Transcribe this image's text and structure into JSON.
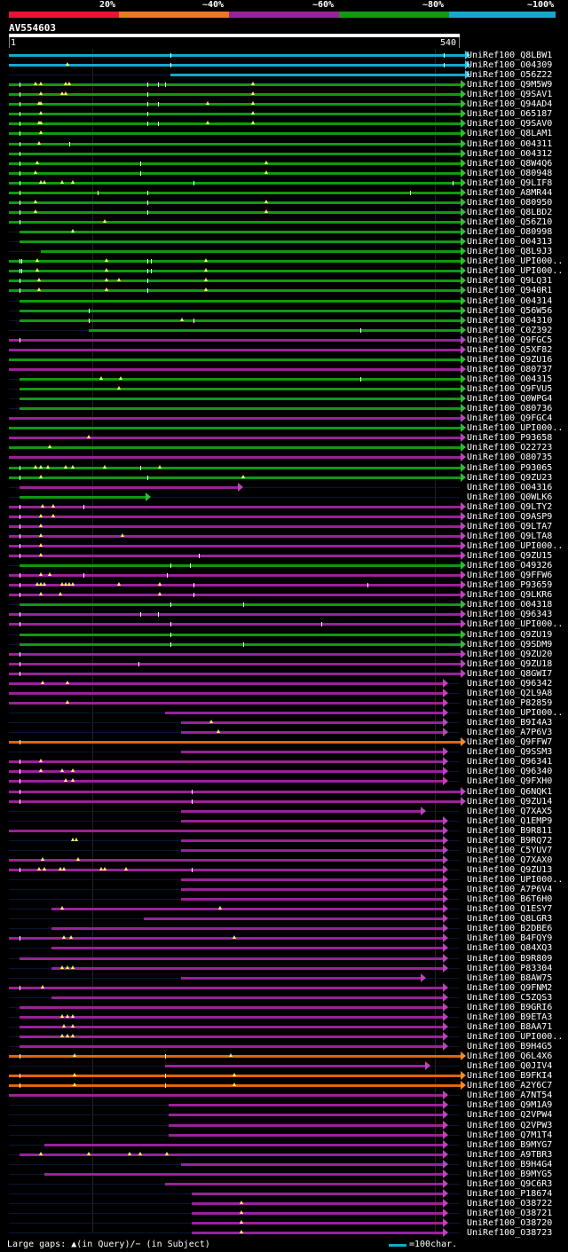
{
  "legend": {
    "items": [
      {
        "label": "20%",
        "color": "#ee1133"
      },
      {
        "label": "~40%",
        "color": "#ee7722"
      },
      {
        "label": "~60%",
        "color": "#992299"
      },
      {
        "label": "~80%",
        "color": "#119911"
      },
      {
        "label": "~100%",
        "color": "#11aacc"
      }
    ]
  },
  "query": {
    "name": "AV554603",
    "start": "1",
    "end": "540"
  },
  "footer": {
    "gaps_text": "Large gaps: ▲(in Query)/− (in Subject)",
    "scale_text": "=100char.",
    "scale_color": "#11aacc"
  },
  "hits": [
    {
      "name": "UniRef100_Q8LBW1",
      "c": "cyan",
      "s": 0,
      "e": 520,
      "b": [
        182,
        490
      ],
      "g": []
    },
    {
      "name": "UniRef100_O04309",
      "c": "cyan",
      "s": 0,
      "e": 520,
      "b": [
        182,
        490
      ],
      "g": [
        66
      ]
    },
    {
      "name": "UniRef100_O56Z22",
      "c": "cyan",
      "s": 182,
      "e": 520,
      "b": [],
      "g": []
    },
    {
      "name": "UniRef100_Q9M5W9",
      "c": "green",
      "s": 0,
      "e": 515,
      "b": [
        12,
        156,
        168,
        176
      ],
      "g": [
        30,
        36,
        64,
        68,
        275
      ]
    },
    {
      "name": "UniRef100_Q9SAV1",
      "c": "green",
      "s": 0,
      "e": 515,
      "b": [
        12,
        156
      ],
      "g": [
        36,
        60,
        64,
        275
      ]
    },
    {
      "name": "UniRef100_Q94AD4",
      "c": "green",
      "s": 0,
      "e": 515,
      "b": [
        12,
        156,
        168
      ],
      "g": [
        34,
        36,
        224,
        275
      ]
    },
    {
      "name": "UniRef100_O65187",
      "c": "green",
      "s": 0,
      "e": 515,
      "b": [
        12,
        156
      ],
      "g": [
        36,
        275
      ]
    },
    {
      "name": "UniRef100_Q9SAV0",
      "c": "green",
      "s": 0,
      "e": 515,
      "b": [
        12,
        156,
        168
      ],
      "g": [
        34,
        36,
        224,
        275
      ]
    },
    {
      "name": "UniRef100_Q8LAM1",
      "c": "green",
      "s": 0,
      "e": 515,
      "b": [
        12
      ],
      "g": [
        36
      ]
    },
    {
      "name": "UniRef100_O04311",
      "c": "green",
      "s": 0,
      "e": 515,
      "b": [
        12,
        68
      ],
      "g": [
        34
      ]
    },
    {
      "name": "UniRef100_O04312",
      "c": "green",
      "s": 0,
      "e": 515,
      "b": [
        12
      ],
      "g": []
    },
    {
      "name": "UniRef100_Q8W4Q6",
      "c": "green",
      "s": 0,
      "e": 515,
      "b": [
        12,
        148
      ],
      "g": [
        32,
        290
      ]
    },
    {
      "name": "UniRef100_O80948",
      "c": "green",
      "s": 0,
      "e": 515,
      "b": [
        12,
        148
      ],
      "g": [
        30,
        290
      ]
    },
    {
      "name": "UniRef100_Q9LIF8",
      "c": "green",
      "s": 0,
      "e": 515,
      "b": [
        12,
        208,
        500
      ],
      "g": [
        36,
        40,
        60,
        72
      ]
    },
    {
      "name": "UniRef100_A8MR44",
      "c": "green",
      "s": 0,
      "e": 515,
      "b": [
        12,
        100,
        156,
        452
      ],
      "g": []
    },
    {
      "name": "UniRef100_O80950",
      "c": "green",
      "s": 0,
      "e": 515,
      "b": [
        12,
        156
      ],
      "g": [
        30,
        290
      ]
    },
    {
      "name": "UniRef100_Q8LBD2",
      "c": "green",
      "s": 0,
      "e": 515,
      "b": [
        12,
        156
      ],
      "g": [
        30,
        290
      ]
    },
    {
      "name": "UniRef100_Q56Z10",
      "c": "green",
      "s": 0,
      "e": 515,
      "b": [
        12
      ],
      "g": [
        108
      ]
    },
    {
      "name": "UniRef100_O80998",
      "c": "green",
      "s": 12,
      "e": 515,
      "b": [],
      "g": [
        72
      ]
    },
    {
      "name": "UniRef100_O04313",
      "c": "green",
      "s": 12,
      "e": 515,
      "b": [],
      "g": []
    },
    {
      "name": "UniRef100_Q8L9J3",
      "c": "green",
      "s": 36,
      "e": 515,
      "b": [],
      "g": []
    },
    {
      "name": "UniRef100_UPI000..",
      "c": "green",
      "s": 0,
      "e": 515,
      "b": [
        12,
        14,
        156,
        160
      ],
      "g": [
        32,
        110,
        222
      ]
    },
    {
      "name": "UniRef100_UPI000..",
      "c": "green",
      "s": 0,
      "e": 515,
      "b": [
        12,
        14,
        156,
        160
      ],
      "g": [
        32,
        110,
        222
      ]
    },
    {
      "name": "UniRef100_Q9LQ31",
      "c": "green",
      "s": 0,
      "e": 515,
      "b": [
        12,
        156
      ],
      "g": [
        34,
        110,
        124,
        222
      ]
    },
    {
      "name": "UniRef100_Q940R1",
      "c": "green",
      "s": 0,
      "e": 515,
      "b": [
        12,
        156
      ],
      "g": [
        34,
        110,
        222
      ]
    },
    {
      "name": "UniRef100_O04314",
      "c": "green",
      "s": 12,
      "e": 515,
      "b": [],
      "g": []
    },
    {
      "name": "UniRef100_Q56W56",
      "c": "green",
      "s": 12,
      "e": 515,
      "b": [
        90
      ],
      "g": []
    },
    {
      "name": "UniRef100_O04310",
      "c": "green",
      "s": 12,
      "e": 515,
      "b": [
        90,
        208
      ],
      "g": [
        195
      ]
    },
    {
      "name": "UniRef100_C0Z392",
      "c": "green",
      "s": 90,
      "e": 515,
      "b": [
        396
      ],
      "g": []
    },
    {
      "name": "UniRef100_Q9FGC5",
      "c": "magenta",
      "s": 0,
      "e": 515,
      "b": [
        12
      ],
      "g": []
    },
    {
      "name": "UniRef100_Q5XF82",
      "c": "magenta",
      "s": 0,
      "e": 515,
      "b": [],
      "g": []
    },
    {
      "name": "UniRef100_Q9ZU16",
      "c": "green",
      "s": 0,
      "e": 515,
      "b": [],
      "g": []
    },
    {
      "name": "UniRef100_O80737",
      "c": "magenta",
      "s": 0,
      "e": 515,
      "b": [],
      "g": []
    },
    {
      "name": "UniRef100_O04315",
      "c": "green",
      "s": 12,
      "e": 515,
      "b": [
        396
      ],
      "g": [
        104,
        126
      ]
    },
    {
      "name": "UniRef100_Q9FVU5",
      "c": "green",
      "s": 12,
      "e": 515,
      "b": [],
      "g": [
        124
      ]
    },
    {
      "name": "UniRef100_Q0WPG4",
      "c": "green",
      "s": 12,
      "e": 515,
      "b": [],
      "g": []
    },
    {
      "name": "UniRef100_O80736",
      "c": "green",
      "s": 12,
      "e": 515,
      "b": [],
      "g": []
    },
    {
      "name": "UniRef100_Q9FGC4",
      "c": "magenta",
      "s": 0,
      "e": 515,
      "b": [],
      "g": []
    },
    {
      "name": "UniRef100_UPI000..",
      "c": "green",
      "s": 0,
      "e": 515,
      "b": [],
      "g": []
    },
    {
      "name": "UniRef100_P93658",
      "c": "magenta",
      "s": 0,
      "e": 515,
      "b": [],
      "g": [
        90
      ]
    },
    {
      "name": "UniRef100_O22723",
      "c": "green",
      "s": 0,
      "e": 515,
      "b": [],
      "g": [
        46
      ]
    },
    {
      "name": "UniRef100_O80735",
      "c": "magenta",
      "s": 0,
      "e": 515,
      "b": [],
      "g": []
    },
    {
      "name": "UniRef100_P93065",
      "c": "green",
      "s": 0,
      "e": 515,
      "b": [
        12,
        148
      ],
      "g": [
        30,
        36,
        44,
        64,
        72,
        108,
        170
      ]
    },
    {
      "name": "UniRef100_Q9ZU23",
      "c": "green",
      "s": 0,
      "e": 515,
      "b": [
        12,
        156
      ],
      "g": [
        36,
        264
      ]
    },
    {
      "name": "UniRef100_O04316",
      "c": "magenta",
      "s": 12,
      "e": 264,
      "b": [],
      "g": []
    },
    {
      "name": "UniRef100_Q0WLK6",
      "c": "green",
      "s": 12,
      "e": 160,
      "b": [],
      "g": []
    },
    {
      "name": "UniRef100_Q9LTY2",
      "c": "magenta",
      "s": 0,
      "e": 515,
      "b": [
        12,
        84
      ],
      "g": [
        38,
        50
      ]
    },
    {
      "name": "UniRef100_Q9ASP9",
      "c": "magenta",
      "s": 0,
      "e": 515,
      "b": [
        12
      ],
      "g": [
        36,
        50
      ]
    },
    {
      "name": "UniRef100_Q9LTA7",
      "c": "magenta",
      "s": 0,
      "e": 515,
      "b": [
        12
      ],
      "g": [
        36
      ]
    },
    {
      "name": "UniRef100_Q9LTA8",
      "c": "magenta",
      "s": 0,
      "e": 515,
      "b": [
        12
      ],
      "g": [
        36,
        128
      ]
    },
    {
      "name": "UniRef100_UPI000..",
      "c": "magenta",
      "s": 0,
      "e": 515,
      "b": [
        12
      ],
      "g": [
        36
      ]
    },
    {
      "name": "UniRef100_Q9ZU15",
      "c": "magenta",
      "s": 0,
      "e": 515,
      "b": [
        12,
        214
      ],
      "g": [
        36
      ]
    },
    {
      "name": "UniRef100_O49326",
      "c": "green",
      "s": 12,
      "e": 515,
      "b": [
        182,
        204
      ],
      "g": []
    },
    {
      "name": "UniRef100_Q9FFW6",
      "c": "magenta",
      "s": 0,
      "e": 515,
      "b": [
        12,
        84,
        178
      ],
      "g": [
        36,
        46
      ]
    },
    {
      "name": "UniRef100_P93659",
      "c": "magenta",
      "s": 0,
      "e": 515,
      "b": [
        12,
        208,
        404
      ],
      "g": [
        32,
        36,
        40,
        60,
        64,
        68,
        72,
        124,
        170
      ]
    },
    {
      "name": "UniRef100_Q9LKR6",
      "c": "magenta",
      "s": 0,
      "e": 515,
      "b": [
        12,
        208
      ],
      "g": [
        36,
        58,
        170
      ]
    },
    {
      "name": "UniRef100_O04318",
      "c": "green",
      "s": 12,
      "e": 515,
      "b": [
        182,
        264
      ],
      "g": []
    },
    {
      "name": "UniRef100_Q96343",
      "c": "magenta",
      "s": 0,
      "e": 515,
      "b": [
        12,
        148,
        168
      ],
      "g": []
    },
    {
      "name": "UniRef100_UPI000..",
      "c": "magenta",
      "s": 0,
      "e": 515,
      "b": [
        12,
        182,
        352
      ],
      "g": []
    },
    {
      "name": "UniRef100_Q9ZU19",
      "c": "green",
      "s": 12,
      "e": 515,
      "b": [
        182
      ],
      "g": []
    },
    {
      "name": "UniRef100_Q9SDM9",
      "c": "green",
      "s": 12,
      "e": 515,
      "b": [
        182,
        264
      ],
      "g": []
    },
    {
      "name": "UniRef100_Q9ZU20",
      "c": "magenta",
      "s": 0,
      "e": 515,
      "b": [
        12
      ],
      "g": []
    },
    {
      "name": "UniRef100_Q9ZU18",
      "c": "magenta",
      "s": 0,
      "e": 515,
      "b": [
        12,
        146
      ],
      "g": []
    },
    {
      "name": "UniRef100_Q8GWI7",
      "c": "magenta",
      "s": 0,
      "e": 515,
      "b": [
        12
      ],
      "g": []
    },
    {
      "name": "UniRef100_Q96342",
      "c": "magenta",
      "s": 0,
      "e": 495,
      "b": [],
      "g": [
        38,
        66
      ]
    },
    {
      "name": "UniRef100_Q2L9A8",
      "c": "magenta",
      "s": 0,
      "e": 495,
      "b": [],
      "g": []
    },
    {
      "name": "UniRef100_P82859",
      "c": "magenta",
      "s": 0,
      "e": 495,
      "b": [],
      "g": [
        66
      ]
    },
    {
      "name": "UniRef100_UPI000..",
      "c": "magenta",
      "s": 176,
      "e": 495,
      "b": [],
      "g": []
    },
    {
      "name": "UniRef100_B9I4A3",
      "c": "magenta",
      "s": 194,
      "e": 495,
      "b": [],
      "g": [
        228
      ]
    },
    {
      "name": "UniRef100_A7P6V3",
      "c": "magenta",
      "s": 194,
      "e": 495,
      "b": [],
      "g": [
        236
      ]
    },
    {
      "name": "UniRef100_Q9FFW7",
      "c": "orange",
      "s": 0,
      "e": 515,
      "b": [
        12
      ],
      "g": []
    },
    {
      "name": "UniRef100_Q9SSM3",
      "c": "magenta",
      "s": 194,
      "e": 495,
      "b": [],
      "g": []
    },
    {
      "name": "UniRef100_Q96341",
      "c": "magenta",
      "s": 0,
      "e": 495,
      "b": [
        12
      ],
      "g": [
        36
      ]
    },
    {
      "name": "UniRef100_Q96340",
      "c": "magenta",
      "s": 0,
      "e": 495,
      "b": [
        12
      ],
      "g": [
        36,
        60,
        72
      ]
    },
    {
      "name": "UniRef100_Q9FXH0",
      "c": "magenta",
      "s": 0,
      "e": 495,
      "b": [
        12
      ],
      "g": [
        64,
        72
      ]
    },
    {
      "name": "UniRef100_Q6NQK1",
      "c": "magenta",
      "s": 0,
      "e": 515,
      "b": [
        12,
        206
      ],
      "g": []
    },
    {
      "name": "UniRef100_Q9ZU14",
      "c": "magenta",
      "s": 0,
      "e": 515,
      "b": [
        12,
        206
      ],
      "g": []
    },
    {
      "name": "UniRef100_Q7XAX5",
      "c": "magenta",
      "s": 194,
      "e": 470,
      "b": [],
      "g": []
    },
    {
      "name": "UniRef100_Q1EMP9",
      "c": "magenta",
      "s": 194,
      "e": 495,
      "b": [],
      "g": []
    },
    {
      "name": "UniRef100_B9R811",
      "c": "magenta",
      "s": 0,
      "e": 495,
      "b": [],
      "g": []
    },
    {
      "name": "UniRef100_B9RQ72",
      "c": "magenta",
      "s": 194,
      "e": 495,
      "b": [],
      "g": [
        72,
        76
      ]
    },
    {
      "name": "UniRef100_C5YUV7",
      "c": "magenta",
      "s": 194,
      "e": 495,
      "b": [],
      "g": []
    },
    {
      "name": "UniRef100_Q7XAX0",
      "c": "magenta",
      "s": 0,
      "e": 495,
      "b": [],
      "g": [
        38,
        78
      ]
    },
    {
      "name": "UniRef100_Q9ZU13",
      "c": "magenta",
      "s": 0,
      "e": 495,
      "b": [
        12,
        206
      ],
      "g": [
        34,
        40,
        58,
        62,
        104,
        108,
        132
      ]
    },
    {
      "name": "UniRef100_UPI000..",
      "c": "magenta",
      "s": 194,
      "e": 495,
      "b": [],
      "g": []
    },
    {
      "name": "UniRef100_A7P6V4",
      "c": "magenta",
      "s": 194,
      "e": 495,
      "b": [],
      "g": []
    },
    {
      "name": "UniRef100_B6T6H0",
      "c": "magenta",
      "s": 194,
      "e": 495,
      "b": [],
      "g": []
    },
    {
      "name": "UniRef100_Q1ESY7",
      "c": "magenta",
      "s": 48,
      "e": 495,
      "b": [],
      "g": [
        60,
        238
      ]
    },
    {
      "name": "UniRef100_Q8LGR3",
      "c": "magenta",
      "s": 152,
      "e": 495,
      "b": [],
      "g": []
    },
    {
      "name": "UniRef100_B2DBE6",
      "c": "magenta",
      "s": 48,
      "e": 495,
      "b": [],
      "g": []
    },
    {
      "name": "UniRef100_B4FQY9",
      "c": "magenta",
      "s": 0,
      "e": 495,
      "b": [
        12
      ],
      "g": [
        62,
        70,
        254
      ]
    },
    {
      "name": "UniRef100_Q84XQ3",
      "c": "magenta",
      "s": 48,
      "e": 495,
      "b": [],
      "g": []
    },
    {
      "name": "UniRef100_B9R809",
      "c": "magenta",
      "s": 12,
      "e": 495,
      "b": [],
      "g": []
    },
    {
      "name": "UniRef100_P83304",
      "c": "magenta",
      "s": 48,
      "e": 495,
      "b": [],
      "g": [
        60,
        66,
        72
      ]
    },
    {
      "name": "UniRef100_B8AW75",
      "c": "magenta",
      "s": 194,
      "e": 470,
      "b": [],
      "g": []
    },
    {
      "name": "UniRef100_Q9FNM2",
      "c": "magenta",
      "s": 0,
      "e": 495,
      "b": [
        12
      ],
      "g": [
        38
      ]
    },
    {
      "name": "UniRef100_C5ZQS3",
      "c": "magenta",
      "s": 48,
      "e": 495,
      "b": [],
      "g": []
    },
    {
      "name": "UniRef100_B9GRI6",
      "c": "magenta",
      "s": 12,
      "e": 495,
      "b": [],
      "g": []
    },
    {
      "name": "UniRef100_B9ETA3",
      "c": "magenta",
      "s": 12,
      "e": 495,
      "b": [],
      "g": [
        60,
        66,
        72
      ]
    },
    {
      "name": "UniRef100_B8AA71",
      "c": "magenta",
      "s": 12,
      "e": 495,
      "b": [],
      "g": [
        62,
        72
      ]
    },
    {
      "name": "UniRef100_UPI000..",
      "c": "magenta",
      "s": 12,
      "e": 495,
      "b": [],
      "g": [
        60,
        66,
        72
      ]
    },
    {
      "name": "UniRef100_B9H4G5",
      "c": "magenta",
      "s": 12,
      "e": 495,
      "b": [],
      "g": []
    },
    {
      "name": "UniRef100_Q6L4X6",
      "c": "orange",
      "s": 0,
      "e": 515,
      "b": [
        12,
        176
      ],
      "g": [
        74,
        250
      ]
    },
    {
      "name": "UniRef100_Q0JIV4",
      "c": "magenta",
      "s": 176,
      "e": 475,
      "b": [],
      "g": []
    },
    {
      "name": "UniRef100_B9FKI4",
      "c": "orange",
      "s": 0,
      "e": 515,
      "b": [
        12,
        176
      ],
      "g": [
        74,
        254
      ]
    },
    {
      "name": "UniRef100_A2Y6C7",
      "c": "orange",
      "s": 0,
      "e": 515,
      "b": [
        12,
        176
      ],
      "g": [
        74,
        254
      ]
    },
    {
      "name": "UniRef100_A7NT54",
      "c": "magenta",
      "s": 0,
      "e": 495,
      "b": [],
      "g": []
    },
    {
      "name": "UniRef100_Q9M1A9",
      "c": "magenta",
      "s": 180,
      "e": 495,
      "b": [],
      "g": []
    },
    {
      "name": "UniRef100_Q2VPW4",
      "c": "magenta",
      "s": 180,
      "e": 495,
      "b": [],
      "g": []
    },
    {
      "name": "UniRef100_Q2VPW3",
      "c": "magenta",
      "s": 180,
      "e": 495,
      "b": [],
      "g": []
    },
    {
      "name": "UniRef100_Q7M1T4",
      "c": "magenta",
      "s": 180,
      "e": 495,
      "b": [],
      "g": []
    },
    {
      "name": "UniRef100_B9MYG7",
      "c": "magenta",
      "s": 40,
      "e": 495,
      "b": [],
      "g": []
    },
    {
      "name": "UniRef100_A9TBR3",
      "c": "magenta",
      "s": 12,
      "e": 495,
      "b": [],
      "g": [
        36,
        90,
        136,
        148,
        178
      ]
    },
    {
      "name": "UniRef100_B9H4G4",
      "c": "magenta",
      "s": 194,
      "e": 495,
      "b": [],
      "g": []
    },
    {
      "name": "UniRef100_B9MYG5",
      "c": "magenta",
      "s": 40,
      "e": 495,
      "b": [],
      "g": []
    },
    {
      "name": "UniRef100_Q9C6R3",
      "c": "magenta",
      "s": 176,
      "e": 495,
      "b": [],
      "g": []
    },
    {
      "name": "UniRef100_P18674",
      "c": "magenta",
      "s": 206,
      "e": 495,
      "b": [],
      "g": []
    },
    {
      "name": "UniRef100_O38722",
      "c": "magenta",
      "s": 206,
      "e": 495,
      "b": [],
      "g": [
        262
      ]
    },
    {
      "name": "UniRef100_O38721",
      "c": "magenta",
      "s": 206,
      "e": 495,
      "b": [],
      "g": [
        262
      ]
    },
    {
      "name": "UniRef100_O38720",
      "c": "magenta",
      "s": 206,
      "e": 495,
      "b": [],
      "g": [
        262
      ]
    },
    {
      "name": "UniRef100_O38723",
      "c": "magenta",
      "s": 206,
      "e": 495,
      "b": [],
      "g": [
        262
      ]
    }
  ]
}
